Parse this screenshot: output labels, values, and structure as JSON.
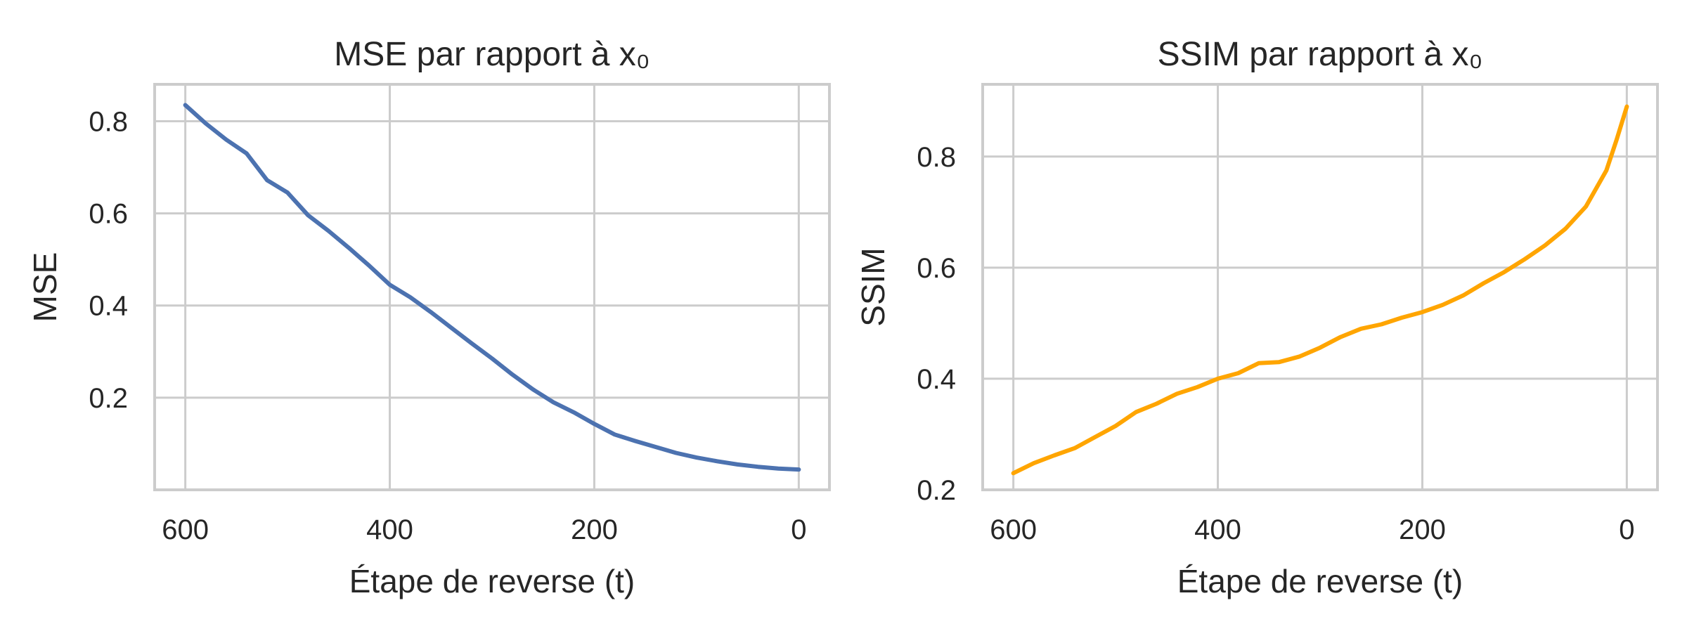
{
  "chart_data": [
    {
      "type": "line",
      "title": "MSE par rapport à x₀",
      "xlabel": "Étape de reverse (t)",
      "ylabel": "MSE",
      "x_inverted": true,
      "xlim": [
        630,
        -30
      ],
      "ylim": [
        0.0,
        0.88
      ],
      "xticks": [
        600,
        400,
        200,
        0
      ],
      "yticks": [
        0.2,
        0.4,
        0.6,
        0.8
      ],
      "yticks_format": "1",
      "grid": true,
      "color": "#4c72b0",
      "series": [
        {
          "x": [
            600,
            580,
            560,
            540,
            520,
            500,
            480,
            460,
            440,
            420,
            400,
            380,
            360,
            340,
            320,
            300,
            280,
            260,
            240,
            220,
            200,
            180,
            160,
            140,
            120,
            100,
            80,
            60,
            40,
            20,
            0
          ],
          "values": [
            0.835,
            0.795,
            0.76,
            0.73,
            0.672,
            0.645,
            0.596,
            0.562,
            0.525,
            0.486,
            0.445,
            0.418,
            0.386,
            0.352,
            0.318,
            0.285,
            0.25,
            0.218,
            0.19,
            0.168,
            0.143,
            0.12,
            0.106,
            0.093,
            0.08,
            0.07,
            0.062,
            0.055,
            0.05,
            0.046,
            0.044
          ]
        }
      ]
    },
    {
      "type": "line",
      "title": "SSIM par rapport à x₀",
      "xlabel": "Étape de reverse (t)",
      "ylabel": "SSIM",
      "x_inverted": true,
      "xlim": [
        630,
        -30
      ],
      "ylim": [
        0.2,
        0.93
      ],
      "xticks": [
        600,
        400,
        200,
        0
      ],
      "yticks": [
        0.2,
        0.4,
        0.6,
        0.8
      ],
      "yticks_format": "1",
      "grid": true,
      "color": "#ffa500",
      "series": [
        {
          "x": [
            600,
            580,
            560,
            540,
            520,
            500,
            480,
            460,
            440,
            420,
            400,
            380,
            360,
            340,
            320,
            300,
            280,
            260,
            240,
            220,
            200,
            180,
            160,
            140,
            120,
            100,
            80,
            60,
            40,
            20,
            10,
            0
          ],
          "values": [
            0.23,
            0.248,
            0.262,
            0.275,
            0.295,
            0.315,
            0.34,
            0.355,
            0.373,
            0.385,
            0.4,
            0.41,
            0.428,
            0.43,
            0.44,
            0.456,
            0.475,
            0.49,
            0.498,
            0.51,
            0.52,
            0.533,
            0.55,
            0.572,
            0.592,
            0.615,
            0.64,
            0.67,
            0.71,
            0.775,
            0.83,
            0.89
          ]
        }
      ]
    }
  ]
}
